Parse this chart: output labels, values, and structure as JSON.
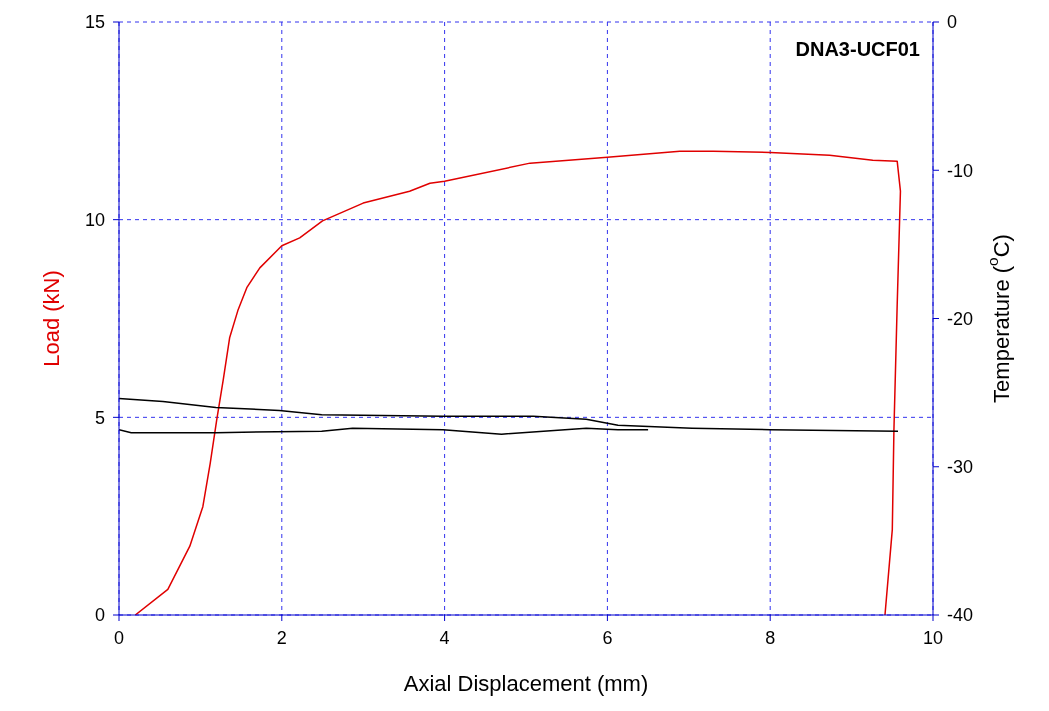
{
  "chart_data": {
    "type": "line",
    "xlabel": "Axial Displacement (mm)",
    "ylabel": "Load (kN)",
    "y2label": "Temperature ($^{o}$C)",
    "annotations": [
      "DNA3-UCF01"
    ],
    "xlim": [
      0,
      10
    ],
    "xticks": [
      0,
      2,
      4,
      6,
      8,
      10
    ],
    "ylim": [
      0,
      15
    ],
    "yticks": [
      0,
      5,
      10,
      15
    ],
    "y2lim": [
      -40,
      0
    ],
    "y2ticks": [
      -40,
      -30,
      -20,
      -10,
      0
    ],
    "grid": true,
    "marker": "none",
    "line_style": "solid",
    "series": [
      {
        "color": "#e00000",
        "x": [
          0.2,
          0.6,
          0.87,
          1.03,
          1.12,
          1.2,
          1.28,
          1.36,
          1.46,
          1.57,
          1.73,
          2.0,
          2.22,
          2.5,
          3.0,
          3.57,
          3.82,
          4.0,
          5.05,
          6.0,
          6.89,
          7.3,
          8.0,
          8.73,
          9.26,
          9.56,
          9.6,
          9.56,
          9.52,
          9.5,
          9.41
        ],
        "values": [
          0,
          0.65,
          1.74,
          2.74,
          3.83,
          4.93,
          5.94,
          7.02,
          7.7,
          8.28,
          8.78,
          9.34,
          9.54,
          9.97,
          10.42,
          10.72,
          10.92,
          10.97,
          11.43,
          11.58,
          11.73,
          11.73,
          11.7,
          11.63,
          11.5,
          11.48,
          10.72,
          7.85,
          4.68,
          2.16,
          0
        ]
      },
      {
        "color": "#000000",
        "axis": "y2",
        "x": [
          0,
          0.54,
          1.19,
          1.97,
          2.49,
          3.98,
          5.09,
          5.74,
          6.13,
          7.04,
          8.0,
          9.57
        ],
        "values": [
          -25.4,
          -25.6,
          -26.0,
          -26.2,
          -26.5,
          -26.6,
          -26.6,
          -26.8,
          -27.2,
          -27.4,
          -27.5,
          -27.6
        ]
      },
      {
        "color": "#000000",
        "axis": "y2",
        "x": [
          0,
          0.15,
          1.19,
          2.49,
          2.87,
          3.98,
          4.7,
          5.74,
          6.13,
          6.5
        ],
        "values": [
          -27.5,
          -27.7,
          -27.7,
          -27.6,
          -27.4,
          -27.5,
          -27.8,
          -27.4,
          -27.5,
          -27.5
        ]
      }
    ]
  }
}
